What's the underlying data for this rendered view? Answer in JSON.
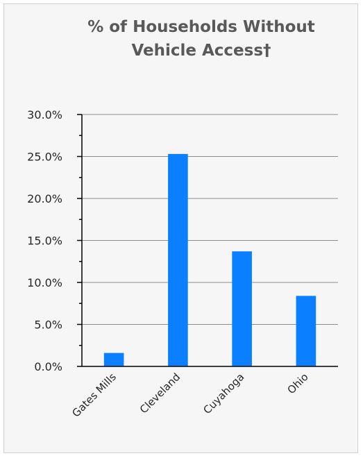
{
  "chart_data": {
    "type": "bar",
    "title_lines": [
      "% of Households Without",
      "Vehicle Access†"
    ],
    "categories": [
      "Gates Mills",
      "Cleveland",
      "Cuyahoga",
      "Ohio"
    ],
    "values": [
      1.6,
      25.3,
      13.7,
      8.4
    ],
    "value_format": "percent_1dp",
    "ylim": [
      0,
      30
    ],
    "y_ticks": [
      "0.0%",
      "5.0%",
      "10.0%",
      "15.0%",
      "20.0%",
      "25.0%",
      "30.0%"
    ],
    "y_tick_values": [
      0,
      5,
      10,
      15,
      20,
      25,
      30
    ],
    "bar_color": "#0a7fff",
    "grid": true,
    "legend": "none"
  }
}
